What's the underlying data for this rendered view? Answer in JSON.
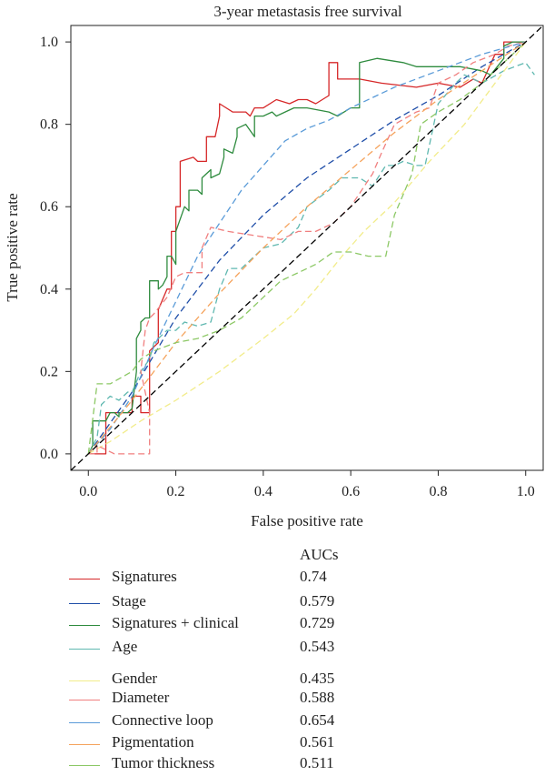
{
  "chart_data": {
    "type": "line",
    "title": "3-year metastasis free survival",
    "xlabel": "False positive rate",
    "ylabel": "True positive rate",
    "xlim": [
      -0.04,
      1.04
    ],
    "ylim": [
      -0.04,
      1.04
    ],
    "xticks": [
      "0.0",
      "0.2",
      "0.4",
      "0.6",
      "0.8",
      "1.0"
    ],
    "yticks": [
      "0.0",
      "0.2",
      "0.4",
      "0.6",
      "0.8",
      "1.0"
    ],
    "grid": false,
    "legend_placement": "below",
    "legend_header": "AUCs",
    "diagonal": {
      "from": [
        -0.04,
        -0.04
      ],
      "to": [
        1.04,
        1.04
      ],
      "color": "#000000",
      "dash": "dashed"
    },
    "series": [
      {
        "name": "Signatures",
        "auc": "0.74",
        "color": "#d62728",
        "dash": "solid",
        "x": [
          0,
          0.04,
          0.04,
          0.1,
          0.1,
          0.12,
          0.12,
          0.14,
          0.14,
          0.16,
          0.16,
          0.18,
          0.19,
          0.19,
          0.2,
          0.2,
          0.21,
          0.21,
          0.24,
          0.25,
          0.26,
          0.27,
          0.27,
          0.29,
          0.3,
          0.3,
          0.33,
          0.36,
          0.37,
          0.38,
          0.4,
          0.43,
          0.46,
          0.48,
          0.5,
          0.52,
          0.55,
          0.55,
          0.57,
          0.57,
          0.6,
          0.62,
          0.67,
          0.75,
          0.8,
          0.85,
          0.88,
          0.9,
          0.93,
          0.95,
          0.95,
          1.0
        ],
        "y": [
          0,
          0,
          0.1,
          0.1,
          0.14,
          0.14,
          0.1,
          0.1,
          0.25,
          0.27,
          0.35,
          0.4,
          0.4,
          0.54,
          0.54,
          0.6,
          0.6,
          0.71,
          0.72,
          0.71,
          0.71,
          0.71,
          0.77,
          0.77,
          0.82,
          0.85,
          0.83,
          0.83,
          0.82,
          0.84,
          0.84,
          0.86,
          0.85,
          0.86,
          0.86,
          0.85,
          0.87,
          0.95,
          0.95,
          0.91,
          0.91,
          0.91,
          0.9,
          0.89,
          0.9,
          0.89,
          0.91,
          0.9,
          0.97,
          0.97,
          1.0,
          1.0
        ]
      },
      {
        "name": "Stage",
        "auc": "0.579",
        "color": "#1f4ea8",
        "dash": "dashed",
        "x": [
          0,
          0.1,
          0.2,
          0.3,
          0.4,
          0.5,
          0.6,
          0.7,
          0.8,
          0.9,
          1.0
        ],
        "y": [
          0,
          0.15,
          0.33,
          0.47,
          0.58,
          0.67,
          0.74,
          0.81,
          0.87,
          0.94,
          1.0
        ]
      },
      {
        "name": "Signatures + clinical",
        "auc": "0.729",
        "color": "#2e8b3e",
        "dash": "solid",
        "x": [
          0,
          0.01,
          0.01,
          0.03,
          0.04,
          0.05,
          0.06,
          0.07,
          0.07,
          0.09,
          0.1,
          0.11,
          0.11,
          0.12,
          0.12,
          0.13,
          0.14,
          0.14,
          0.16,
          0.16,
          0.17,
          0.18,
          0.18,
          0.19,
          0.2,
          0.2,
          0.22,
          0.23,
          0.23,
          0.25,
          0.26,
          0.26,
          0.28,
          0.28,
          0.3,
          0.31,
          0.31,
          0.33,
          0.34,
          0.34,
          0.36,
          0.38,
          0.38,
          0.4,
          0.42,
          0.43,
          0.45,
          0.47,
          0.5,
          0.55,
          0.57,
          0.6,
          0.62,
          0.62,
          0.66,
          0.72,
          0.75,
          0.8,
          0.85,
          0.9,
          0.92,
          0.95,
          0.95,
          0.97,
          1.0
        ],
        "y": [
          0,
          0.02,
          0.08,
          0.08,
          0.08,
          0.1,
          0.1,
          0.09,
          0.1,
          0.1,
          0.11,
          0.2,
          0.28,
          0.3,
          0.32,
          0.33,
          0.33,
          0.42,
          0.42,
          0.4,
          0.41,
          0.43,
          0.48,
          0.48,
          0.46,
          0.54,
          0.6,
          0.59,
          0.64,
          0.64,
          0.63,
          0.67,
          0.69,
          0.67,
          0.68,
          0.72,
          0.74,
          0.73,
          0.77,
          0.79,
          0.8,
          0.77,
          0.82,
          0.82,
          0.83,
          0.82,
          0.83,
          0.84,
          0.84,
          0.83,
          0.82,
          0.84,
          0.84,
          0.95,
          0.96,
          0.95,
          0.94,
          0.94,
          0.94,
          0.93,
          0.92,
          0.96,
          0.99,
          1.0,
          1.0
        ]
      },
      {
        "name": "Age",
        "auc": "0.543",
        "color": "#5fb8b0",
        "dash": "dashed",
        "x": [
          0,
          0.02,
          0.03,
          0.05,
          0.07,
          0.09,
          0.1,
          0.12,
          0.14,
          0.15,
          0.18,
          0.2,
          0.22,
          0.25,
          0.28,
          0.3,
          0.32,
          0.35,
          0.38,
          0.4,
          0.44,
          0.48,
          0.5,
          0.55,
          0.58,
          0.62,
          0.65,
          0.68,
          0.7,
          0.72,
          0.75,
          0.77,
          0.8,
          0.84,
          0.86,
          0.9,
          0.95,
          1.0,
          1.02
        ],
        "y": [
          0,
          0.04,
          0.12,
          0.14,
          0.13,
          0.15,
          0.15,
          0.2,
          0.23,
          0.27,
          0.3,
          0.3,
          0.32,
          0.31,
          0.32,
          0.4,
          0.45,
          0.45,
          0.48,
          0.5,
          0.51,
          0.55,
          0.6,
          0.64,
          0.67,
          0.67,
          0.65,
          0.7,
          0.7,
          0.71,
          0.7,
          0.7,
          0.85,
          0.9,
          0.92,
          0.9,
          0.93,
          0.95,
          0.92
        ]
      },
      {
        "name": "Gender",
        "auc": "0.435",
        "color": "#f2ec8a",
        "dash": "dashed",
        "x": [
          0,
          0.05,
          0.12,
          0.2,
          0.3,
          0.4,
          0.47,
          0.52,
          0.58,
          0.63,
          0.7,
          0.78,
          0.86,
          0.93,
          1.0
        ],
        "y": [
          0,
          0.03,
          0.08,
          0.13,
          0.2,
          0.28,
          0.34,
          0.4,
          0.48,
          0.54,
          0.61,
          0.71,
          0.8,
          0.9,
          1.0
        ]
      },
      {
        "name": "Diameter",
        "auc": "0.588",
        "color": "#f07f7f",
        "dash": "dashed",
        "x": [
          0,
          0.02,
          0.02,
          0.06,
          0.09,
          0.1,
          0.12,
          0.14,
          0.14,
          0.12,
          0.13,
          0.14,
          0.15,
          0.18,
          0.2,
          0.22,
          0.24,
          0.26,
          0.26,
          0.28,
          0.32,
          0.38,
          0.44,
          0.48,
          0.52,
          0.56,
          0.6,
          0.65,
          0.67,
          0.7,
          0.75,
          0.78,
          0.8,
          0.84,
          0.88,
          0.93,
          0.96,
          1.0
        ],
        "y": [
          0,
          0,
          0.02,
          0,
          0,
          0,
          0,
          0,
          0.1,
          0.2,
          0.3,
          0.33,
          0.34,
          0.38,
          0.43,
          0.44,
          0.44,
          0.44,
          0.5,
          0.55,
          0.54,
          0.53,
          0.52,
          0.54,
          0.54,
          0.56,
          0.6,
          0.68,
          0.73,
          0.8,
          0.83,
          0.84,
          0.9,
          0.92,
          0.95,
          0.97,
          0.99,
          1.0
        ]
      },
      {
        "name": "Connective loop",
        "auc": "0.654",
        "color": "#5a9bd8",
        "dash": "dashed",
        "x": [
          0,
          0.05,
          0.1,
          0.15,
          0.2,
          0.25,
          0.3,
          0.35,
          0.4,
          0.45,
          0.5,
          0.55,
          0.6,
          0.7,
          0.8,
          0.9,
          1.0
        ],
        "y": [
          0,
          0.06,
          0.14,
          0.26,
          0.37,
          0.48,
          0.56,
          0.64,
          0.7,
          0.76,
          0.79,
          0.81,
          0.84,
          0.89,
          0.93,
          0.97,
          1.0
        ]
      },
      {
        "name": "Pigmentation",
        "auc": "0.561",
        "color": "#f5a35c",
        "dash": "dashed",
        "x": [
          0,
          0.1,
          0.2,
          0.3,
          0.4,
          0.5,
          0.6,
          0.7,
          0.8,
          0.9,
          1.0
        ],
        "y": [
          0,
          0.13,
          0.27,
          0.39,
          0.5,
          0.6,
          0.69,
          0.78,
          0.86,
          0.93,
          1.0
        ]
      },
      {
        "name": "Tumor thickness",
        "auc": "0.511",
        "color": "#8cc865",
        "dash": "dashed",
        "x": [
          0,
          0.02,
          0.02,
          0.05,
          0.1,
          0.12,
          0.15,
          0.2,
          0.25,
          0.3,
          0.35,
          0.4,
          0.44,
          0.48,
          0.52,
          0.56,
          0.6,
          0.64,
          0.68,
          0.69,
          0.7,
          0.74,
          0.76,
          0.8,
          0.85,
          0.9,
          0.95,
          1.0
        ],
        "y": [
          0,
          0.17,
          0.17,
          0.17,
          0.2,
          0.23,
          0.25,
          0.27,
          0.28,
          0.3,
          0.33,
          0.38,
          0.42,
          0.44,
          0.46,
          0.49,
          0.49,
          0.48,
          0.48,
          0.53,
          0.58,
          0.68,
          0.8,
          0.83,
          0.86,
          0.9,
          0.95,
          1.0
        ]
      }
    ]
  }
}
